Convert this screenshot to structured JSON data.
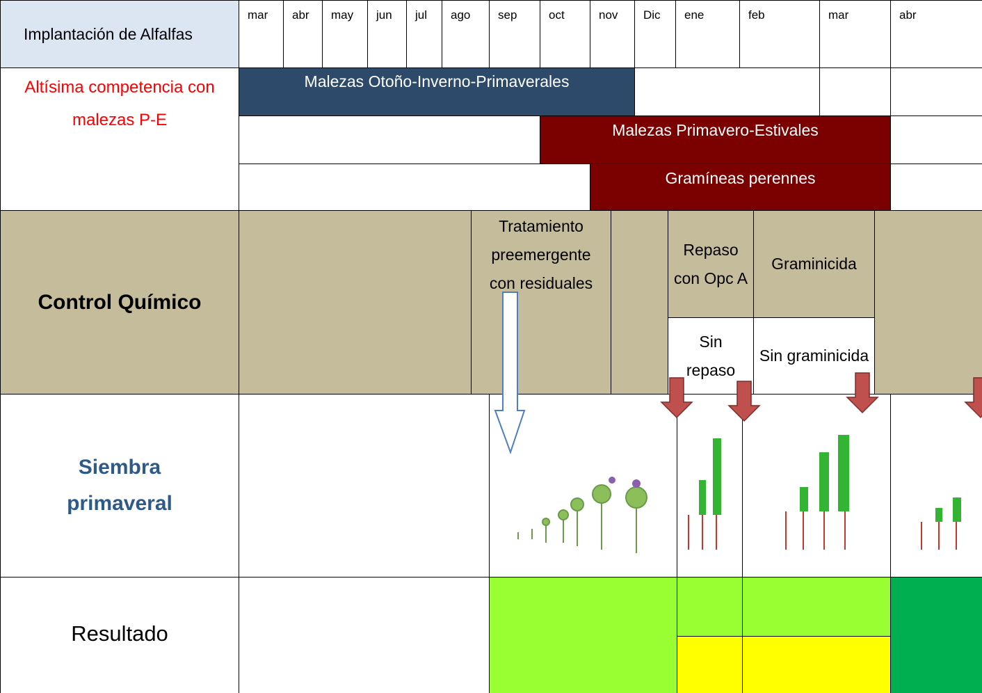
{
  "header": {
    "title": "Implantación de Alfalfas",
    "months": [
      "mar",
      "abr",
      "may",
      "jun",
      "jul",
      "ago",
      "sep",
      "oct",
      "nov",
      "Dic",
      "ene",
      "feb",
      "mar",
      "abr"
    ]
  },
  "weeds": {
    "label": "Altísima competencia con malezas P-E",
    "bars": [
      "Malezas Otoño-Inverno-Primaverales",
      "Malezas Primavero-Estivales",
      "Gramíneas perennes"
    ]
  },
  "chemical": {
    "label": "Control Químico",
    "treatments": [
      "Tratamiento preemergente con residuales",
      "Repaso con Opc A",
      "Graminicida",
      "Sin repaso",
      "Sin graminicida"
    ]
  },
  "sowing": {
    "label": "Siembra primaveral"
  },
  "result": {
    "label": "Resultado"
  }
}
